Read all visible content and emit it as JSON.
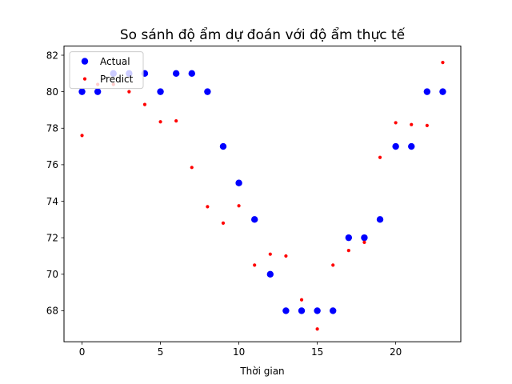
{
  "chart_data": {
    "type": "scatter",
    "title": "So sánh độ ẩm dự đoán với độ ẩm thực tế",
    "xlabel": "Thời gian",
    "ylabel": "",
    "xlim": [
      -1.15,
      24.15
    ],
    "ylim": [
      66.3,
      82.5
    ],
    "xticks": [
      0,
      5,
      10,
      15,
      20
    ],
    "yticks": [
      68,
      70,
      72,
      74,
      76,
      78,
      80,
      82
    ],
    "grid": false,
    "legend": {
      "position": "top-left",
      "entries": [
        "Actual",
        "Predict"
      ]
    },
    "series": [
      {
        "name": "Actual",
        "color": "#0000ff",
        "marker": "large-dot",
        "x": [
          0,
          1,
          2,
          3,
          4,
          5,
          6,
          7,
          8,
          9,
          10,
          11,
          12,
          13,
          14,
          15,
          16,
          17,
          18,
          19,
          20,
          21,
          22,
          23
        ],
        "y": [
          80,
          80,
          81,
          81,
          81,
          80,
          81,
          81,
          80,
          77,
          75,
          73,
          70,
          68,
          68,
          68,
          68,
          72,
          72,
          73,
          77,
          77,
          80,
          80
        ]
      },
      {
        "name": "Predict",
        "color": "#ff0000",
        "marker": "small-dot",
        "x": [
          0,
          1,
          2,
          3,
          4,
          5,
          6,
          7,
          8,
          9,
          10,
          11,
          12,
          13,
          14,
          15,
          16,
          17,
          18,
          19,
          20,
          21,
          22,
          23
        ],
        "y": [
          77.6,
          80.4,
          80.4,
          80.0,
          79.3,
          78.35,
          78.4,
          75.85,
          73.7,
          72.8,
          73.75,
          70.5,
          71.1,
          71.0,
          68.6,
          67.0,
          70.5,
          71.3,
          71.75,
          76.4,
          78.3,
          78.2,
          78.15,
          81.6
        ]
      }
    ]
  }
}
